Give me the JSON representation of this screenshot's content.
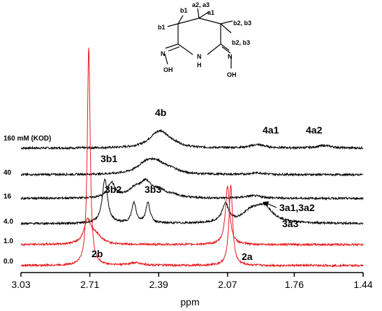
{
  "chart_data": {
    "type": "line",
    "title": "",
    "xlabel": "ppm",
    "ylabel": "",
    "x_axis": {
      "reversed": true,
      "range": [
        3.03,
        1.44
      ],
      "ticks": [
        3.03,
        2.71,
        2.39,
        2.07,
        1.76,
        1.44
      ],
      "tick_labels": [
        "3.03",
        "2.71",
        "2.39",
        "2.07",
        "1.76",
        "1.44"
      ]
    },
    "grid": false,
    "legend": "none",
    "colors": {
      "red_traces": "#e8191c",
      "black_traces": "#000000"
    },
    "series": [
      {
        "name": "160 mM (KOD)",
        "color": "#000000",
        "peaks": [
          {
            "ppm": 2.4,
            "height": 0.72,
            "width": 0.05
          },
          {
            "ppm": 2.37,
            "height": 0.4,
            "width": 0.03
          },
          {
            "ppm": 2.32,
            "height": 0.2,
            "width": 0.04
          },
          {
            "ppm": 1.93,
            "height": 0.2,
            "width": 0.04
          },
          {
            "ppm": 1.62,
            "height": 0.15,
            "width": 0.04
          }
        ]
      },
      {
        "name": "40",
        "color": "#000000",
        "peaks": [
          {
            "ppm": 2.45,
            "height": 0.55,
            "width": 0.05
          },
          {
            "ppm": 2.4,
            "height": 0.6,
            "width": 0.05
          },
          {
            "ppm": 2.33,
            "height": 0.2,
            "width": 0.04
          },
          {
            "ppm": 1.93,
            "height": 0.1,
            "width": 0.04
          }
        ]
      },
      {
        "name": "16",
        "color": "#000000",
        "peaks": [
          {
            "ppm": 2.61,
            "height": 0.9,
            "width": 0.02
          },
          {
            "ppm": 2.5,
            "height": 0.5,
            "width": 0.04
          },
          {
            "ppm": 2.45,
            "height": 0.8,
            "width": 0.03
          },
          {
            "ppm": 2.39,
            "height": 0.4,
            "width": 0.04
          },
          {
            "ppm": 2.32,
            "height": 0.15,
            "width": 0.04
          },
          {
            "ppm": 1.95,
            "height": 0.15,
            "width": 0.05
          }
        ]
      },
      {
        "name": "4.0",
        "color": "#000000",
        "peaks": [
          {
            "ppm": 2.64,
            "height": 2.6,
            "width": 0.015
          },
          {
            "ppm": 2.505,
            "height": 1.2,
            "width": 0.012
          },
          {
            "ppm": 2.44,
            "height": 1.2,
            "width": 0.012
          },
          {
            "ppm": 2.08,
            "height": 1.1,
            "width": 0.018
          },
          {
            "ppm": 1.96,
            "height": 0.6,
            "width": 0.05
          },
          {
            "ppm": 1.9,
            "height": 0.9,
            "width": 0.05
          }
        ]
      },
      {
        "name": "1.0",
        "color": "#e8191c",
        "peaks": [
          {
            "ppm": 2.72,
            "height": 1.4,
            "width": 0.02
          },
          {
            "ppm": 2.68,
            "height": 0.5,
            "width": 0.03
          },
          {
            "ppm": 2.07,
            "height": 3.5,
            "width": 0.012
          }
        ]
      },
      {
        "name": "0.0",
        "color": "#e8191c",
        "peaks": [
          {
            "ppm": 2.715,
            "height": 13.0,
            "width": 0.008
          },
          {
            "ppm": 2.5,
            "height": 0.15,
            "width": 0.04
          },
          {
            "ppm": 2.055,
            "height": 4.8,
            "width": 0.01
          }
        ]
      }
    ],
    "annotations": [
      {
        "text": "4b",
        "ppm": 2.39
      },
      {
        "text": "4a1",
        "ppm": 1.93
      },
      {
        "text": "4a2",
        "ppm": 1.62
      },
      {
        "text": "3b1",
        "ppm": 2.64
      },
      {
        "text": "3b2",
        "ppm": 2.505
      },
      {
        "text": "3b3",
        "ppm": 2.44
      },
      {
        "text": "3a1,3a2",
        "ppm": 1.9
      },
      {
        "text": "3a3",
        "ppm": 1.9
      },
      {
        "text": "2b",
        "ppm": 2.715
      },
      {
        "text": "2a",
        "ppm": 2.055
      }
    ]
  },
  "molecule": {
    "labels": {
      "b1_top": "b1",
      "a2_a3": "a2, a3",
      "a1": "a1",
      "b1_left": "b1",
      "b2_b3_top": "b2, b3",
      "b2_b3_bottom": "b2, b3",
      "n_left": "N",
      "nh": "N",
      "h": "H",
      "n_right": "N",
      "oh_left": "OH",
      "oh_right": "OH"
    }
  }
}
